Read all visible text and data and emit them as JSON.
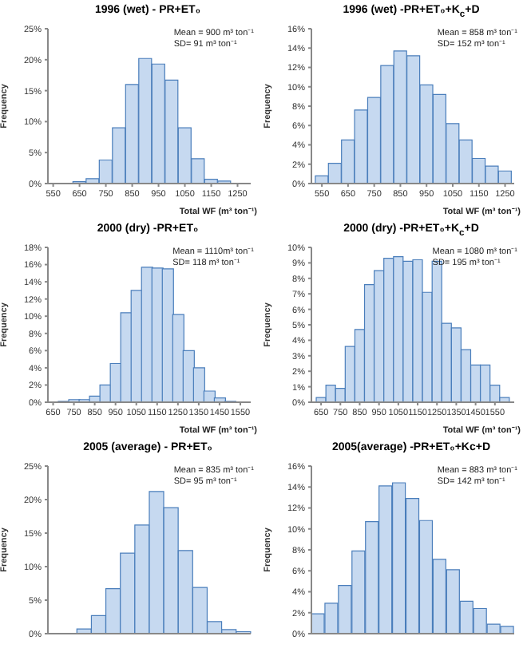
{
  "chart_data": [
    {
      "type": "histogram",
      "title": "1996 (wet) - PR+ET₀",
      "xlabel": "Total WF (m³ ton⁻¹)",
      "ylabel": "Frequency",
      "annotations": [
        "Mean = 900 m³ ton⁻¹",
        "SD= 91 m³ ton⁻¹"
      ],
      "color": "#c6d9f0",
      "bins": [
        575,
        625,
        675,
        725,
        775,
        825,
        875,
        925,
        975,
        1025,
        1075,
        1125,
        1175,
        1225,
        1275
      ],
      "values": [
        null,
        0.3,
        0.8,
        3.8,
        9,
        16,
        20.2,
        19.3,
        16.7,
        9,
        4,
        0.7,
        0.4,
        null
      ],
      "xlim": [
        530,
        1300
      ],
      "xticks": [
        550,
        650,
        750,
        850,
        950,
        1050,
        1150,
        1250
      ],
      "ylim": [
        0,
        25
      ],
      "yticks": [
        {
          "value": 0,
          "label": "0%"
        },
        {
          "value": 5,
          "label": "5%"
        },
        {
          "value": 10,
          "label": "10%"
        },
        {
          "value": 15,
          "label": "15%"
        },
        {
          "value": 20,
          "label": "20%"
        },
        {
          "value": 25,
          "label": "25%"
        }
      ]
    },
    {
      "type": "histogram",
      "title": "1996 (wet) -PR+ET₀+K$_{c}$+D",
      "xlabel": "Total WF (m³ ton⁻¹)",
      "ylabel": "Frequency",
      "annotations": [
        "Mean = 858 m³ ton⁻¹",
        "SD= 152 m³ ton⁻¹"
      ],
      "color": "#c6d9f0",
      "bins": [
        525,
        575,
        625,
        675,
        725,
        775,
        825,
        875,
        925,
        975,
        1025,
        1075,
        1125,
        1175,
        1225,
        1275
      ],
      "values": [
        0.8,
        2.1,
        4.5,
        7.6,
        8.9,
        12.2,
        13.7,
        13.2,
        10.2,
        9.2,
        6.2,
        4.5,
        2.6,
        1.8,
        1.3
      ],
      "xlim": [
        510,
        1285
      ],
      "xticks": [
        550,
        650,
        750,
        850,
        950,
        1050,
        1150,
        1250
      ],
      "ylim": [
        0,
        16
      ],
      "yticks": [
        {
          "value": 0,
          "label": "0%"
        },
        {
          "value": 2,
          "label": "2%"
        },
        {
          "value": 4,
          "label": "4%"
        },
        {
          "value": 6,
          "label": "6%"
        },
        {
          "value": 8,
          "label": "8%"
        },
        {
          "value": 10,
          "label": "10%"
        },
        {
          "value": 12,
          "label": "12%"
        },
        {
          "value": 14,
          "label": "14%"
        },
        {
          "value": 16,
          "label": "16%"
        }
      ]
    },
    {
      "type": "histogram",
      "title": "2000 (dry) -PR+ET₀",
      "xlabel": "Total WF (m³ ton⁻¹)",
      "ylabel": "Frequency",
      "annotations": [
        "Mean = 1110m³ ton⁻¹",
        "SD= 118 m³ ton⁻¹"
      ],
      "color": "#c6d9f0",
      "bins": [
        675,
        725,
        775,
        825,
        875,
        925,
        975,
        1025,
        1075,
        1125,
        1175,
        1225,
        1275,
        1325,
        1375,
        1425,
        1475,
        1525
      ],
      "values": [
        0.1,
        0.3,
        0.3,
        0.7,
        2,
        4.5,
        10.4,
        13,
        15.7,
        15.6,
        15.5,
        10.2,
        6,
        4,
        1.3,
        0.5,
        0.1
      ],
      "xlim": [
        625,
        1600
      ],
      "xticks": [
        650,
        750,
        850,
        950,
        1050,
        1150,
        1250,
        1350,
        1450,
        1550
      ],
      "ylim": [
        0,
        18
      ],
      "yticks": [
        {
          "value": 0,
          "label": "0%"
        },
        {
          "value": 2,
          "label": "2%"
        },
        {
          "value": 4,
          "label": "4%"
        },
        {
          "value": 6,
          "label": "6%"
        },
        {
          "value": 8,
          "label": "8%"
        },
        {
          "value": 10,
          "label": "10%"
        },
        {
          "value": 12,
          "label": "12%"
        },
        {
          "value": 14,
          "label": "14%"
        },
        {
          "value": 16,
          "label": "16%"
        },
        {
          "value": 18,
          "label": "18%"
        }
      ]
    },
    {
      "type": "histogram",
      "title": "2000 (dry) -PR+ET₀+K$_{c}$+D",
      "xlabel": "Total WF (m³ ton⁻¹)",
      "ylabel": "Frequency",
      "annotations": [
        "Mean = 1080 m³ ton⁻¹",
        "SD= 195 m³ ton⁻¹"
      ],
      "color": "#c6d9f0",
      "bins": [
        625,
        675,
        725,
        775,
        825,
        875,
        925,
        975,
        1025,
        1075,
        1125,
        1175,
        1225,
        1275,
        1325,
        1375,
        1425,
        1475,
        1525,
        1575,
        1625
      ],
      "values": [
        0.3,
        1.1,
        0.9,
        3.6,
        4.7,
        7.6,
        8.5,
        9.3,
        9.4,
        9.1,
        9.2,
        7.1,
        9.1,
        5.1,
        4.8,
        3.4,
        2.4,
        2.4,
        1.1,
        0.3
      ],
      "xlim": [
        600,
        1650
      ],
      "xticks": [
        650,
        750,
        850,
        950,
        1050,
        1150,
        1250,
        1350,
        1450,
        1550
      ],
      "ylim": [
        0,
        10
      ],
      "yticks": [
        {
          "value": 0,
          "label": "0%"
        },
        {
          "value": 1,
          "label": "1%"
        },
        {
          "value": 2,
          "label": "2%"
        },
        {
          "value": 3,
          "label": "3%"
        },
        {
          "value": 4,
          "label": "4%"
        },
        {
          "value": 5,
          "label": "5%"
        },
        {
          "value": 6,
          "label": "6%"
        },
        {
          "value": 7,
          "label": "7%"
        },
        {
          "value": 8,
          "label": "8%"
        },
        {
          "value": 9,
          "label": "9%"
        },
        {
          "value": 10,
          "label": "10%"
        }
      ]
    },
    {
      "type": "bar",
      "title": "2005 (average) - PR+ET₀",
      "ylabel": "Frequency",
      "annotations": [
        "Mean = 835 m³ ton⁻¹",
        "SD= 95 m³ ton⁻¹"
      ],
      "color": "#c6d9f0",
      "categories": [
        null,
        null,
        null,
        null,
        null,
        null,
        null,
        null,
        null,
        null,
        null,
        null,
        null,
        null
      ],
      "values": [
        null,
        null,
        0.7,
        2.7,
        6.7,
        12,
        16.2,
        21.2,
        18.8,
        12.4,
        6.9,
        1.8,
        0.6,
        0.3
      ],
      "tick_labels": "y",
      "ylim": [
        0,
        25
      ],
      "yticks": [
        {
          "value": 0,
          "label": "0%"
        },
        {
          "value": 5,
          "label": "5%"
        },
        {
          "value": 10,
          "label": "10%"
        },
        {
          "value": 15,
          "label": "15%"
        },
        {
          "value": 20,
          "label": "20%"
        },
        {
          "value": 25,
          "label": "25%"
        }
      ]
    },
    {
      "type": "bar",
      "title": "2005(average) -PR+ET₀+Kc+D",
      "ylabel": "Frequency",
      "annotations": [
        "Mean = 883 m³ ton⁻¹",
        "SD= 142 m³ ton⁻¹"
      ],
      "color": "#c6d9f0",
      "categories": [
        null,
        null,
        null,
        null,
        null,
        null,
        null,
        null,
        null,
        null,
        null,
        null,
        null,
        null,
        null
      ],
      "values": [
        1.9,
        2.9,
        4.6,
        7.9,
        10.7,
        14.1,
        14.4,
        12.9,
        10.8,
        7.1,
        6.1,
        3.1,
        2.4,
        0.9,
        0.7
      ],
      "tick_labels": "y",
      "ylim": [
        0,
        16
      ],
      "yticks": [
        {
          "value": 0,
          "label": "0%"
        },
        {
          "value": 2,
          "label": "2%"
        },
        {
          "value": 4,
          "label": "4%"
        },
        {
          "value": 6,
          "label": "6%"
        },
        {
          "value": 8,
          "label": "8%"
        },
        {
          "value": 10,
          "label": "10%"
        },
        {
          "value": 12,
          "label": "12%"
        },
        {
          "value": 14,
          "label": "14%"
        },
        {
          "value": 16,
          "label": "16%"
        }
      ]
    }
  ]
}
